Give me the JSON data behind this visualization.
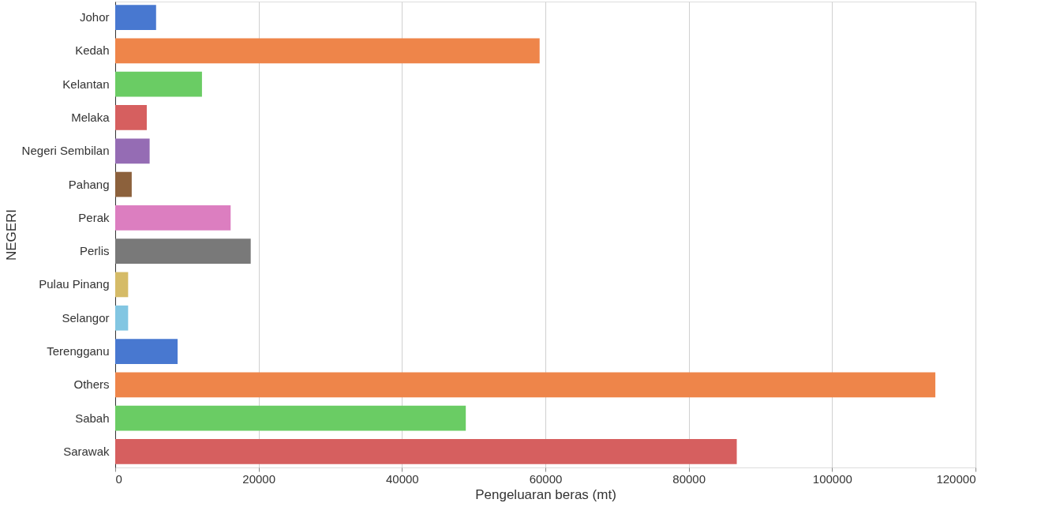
{
  "chart_data": {
    "type": "bar",
    "orientation": "horizontal",
    "xlabel": "Pengeluaran beras (mt)",
    "ylabel": "NEGERI",
    "categories": [
      "Johor",
      "Kedah",
      "Kelantan",
      "Melaka",
      "Negeri Sembilan",
      "Pahang",
      "Perak",
      "Perlis",
      "Pulau Pinang",
      "Selangor",
      "Terengganu",
      "Others",
      "Sabah",
      "Sarawak"
    ],
    "values": [
      5700,
      59200,
      12100,
      4400,
      4800,
      2300,
      16100,
      18900,
      1800,
      1800,
      8700,
      114400,
      48900,
      86700
    ],
    "colors": [
      "#4878d0",
      "#ee854a",
      "#6acc64",
      "#d65f5f",
      "#956cb4",
      "#8c613c",
      "#dc7ec0",
      "#797979",
      "#d5bb67",
      "#82c6e2",
      "#4878d0",
      "#ee854a",
      "#6acc64",
      "#d65f5f"
    ],
    "xlim": [
      0,
      120000
    ],
    "xticks": [
      0,
      20000,
      40000,
      60000,
      80000,
      100000,
      120000
    ],
    "grid": "x",
    "legend": false
  }
}
